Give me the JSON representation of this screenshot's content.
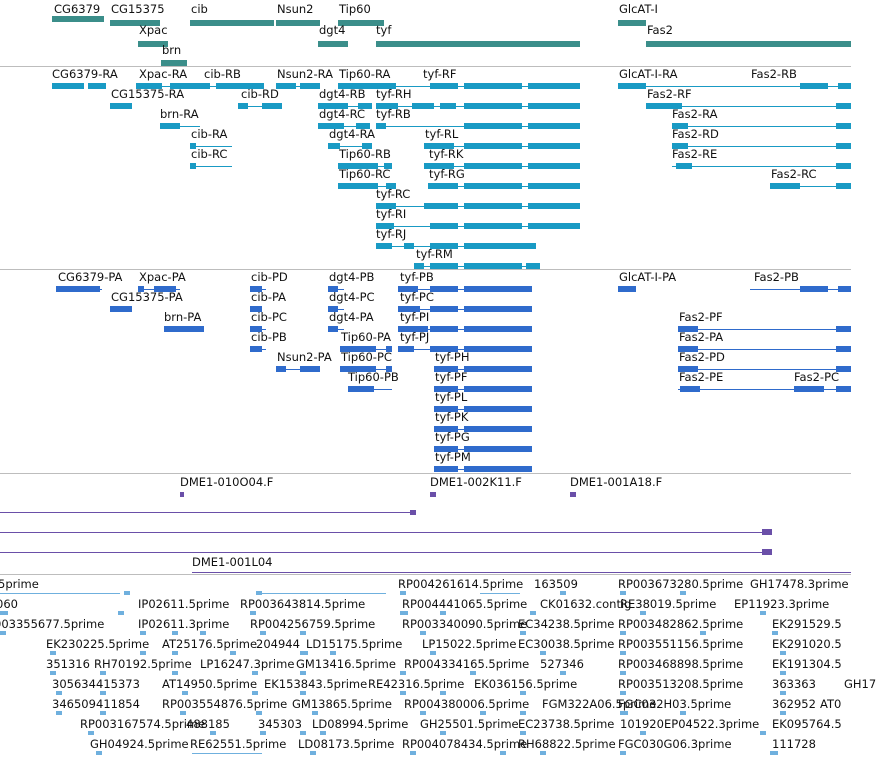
{
  "tracks": {
    "genes": [
      "CG6379",
      "CG15375",
      "cib",
      "Nsun2",
      "Tip60",
      "GlcAT-I",
      "Xpac",
      "dgt4",
      "tyf",
      "Fas2",
      "brn"
    ],
    "transcripts": [
      "CG6379-RA",
      "Xpac-RA",
      "cib-RB",
      "Nsun2-RA",
      "Tip60-RA",
      "tyf-RF",
      "GlcAT-I-RA",
      "Fas2-RB",
      "CG15375-RA",
      "cib-RD",
      "dgt4-RB",
      "tyf-RH",
      "Fas2-RF",
      "brn-RA",
      "dgt4-RC",
      "tyf-RB",
      "Fas2-RA",
      "cib-RA",
      "dgt4-RA",
      "tyf-RL",
      "Fas2-RD",
      "cib-RC",
      "Tip60-RB",
      "tyf-RK",
      "Fas2-RE",
      "Tip60-RC",
      "tyf-RG",
      "Fas2-RC",
      "tyf-RC",
      "tyf-RI",
      "tyf-RJ",
      "tyf-RM"
    ],
    "proteins": [
      "CG6379-PA",
      "Xpac-PA",
      "cib-PD",
      "dgt4-PB",
      "tyf-PB",
      "GlcAT-I-PA",
      "Fas2-PB",
      "CG15375-PA",
      "cib-PA",
      "dgt4-PC",
      "tyf-PC",
      "brn-PA",
      "cib-PC",
      "dgt4-PA",
      "tyf-PI",
      "Fas2-PF",
      "cib-PB",
      "Tip60-PA",
      "tyf-PJ",
      "Fas2-PA",
      "Nsun2-PA",
      "Tip60-PC",
      "tyf-PH",
      "Fas2-PD",
      "Tip60-PB",
      "tyf-PF",
      "Fas2-PE",
      "tyf-PL",
      "Fas2-PC",
      "tyf-PK",
      "tyf-PG",
      "tyf-PM"
    ],
    "clones": [
      "DME1-010O04.F",
      "DME1-002K11.F",
      "DME1-001A18.F",
      "DME1-001L04"
    ],
    "ests": [
      "5prime",
      "RP004261614.5prime",
      "163509",
      "RP003673280.5prime",
      "GH17478.3prime",
      "060",
      "IP02611.5prime",
      "RP003643814.5prime",
      "RP004441065.5prime",
      "CK01632.contig",
      "RE38019.5prime",
      "EP11923.3prime",
      "003355677.5prime",
      "IP02611.3prime",
      "RP004256759.5prime",
      "RP003340090.5prime",
      "EC34238.5prime",
      "RP003482862.5prime",
      "EK291529.5",
      "EK230225.5prime",
      "AT25176.5prime",
      "204944",
      "LD15175.5prime",
      "LP15022.5prime",
      "EC30038.5prime",
      "RP003551156.5prime",
      "EK291020.5",
      "351316",
      "RH70192.5prime",
      "LP16247.3prime",
      "GM13416.5prime",
      "RP004334165.5prime",
      "527346",
      "RP003468898.5prime",
      "EK191304.5",
      "305634",
      "415373",
      "AT14950.5prime",
      "EK153843.5prime",
      "RE42316.5prime",
      "EK036156.5prime",
      "RP003513208.5prime",
      "363363",
      "GH17",
      "346509",
      "411854",
      "RP003554876.5prime",
      "GM13865.5prime",
      "RP004380006.5prime",
      "FGM322A06.5prime",
      "FGC032H03.5prime",
      "362952",
      "AT0",
      "RP003167574.5prime",
      "488185",
      "345303",
      "LD08994.5prime",
      "GH25501.5prime",
      "EC23738.5prime",
      "101920",
      "EP04522.3prime",
      "EK095764.5",
      "GH04924.5prime",
      "RE62551.5prime",
      "LD08173.5prime",
      "RP004078434.5prime",
      "RH68822.5prime",
      "FGC030G06.3prime",
      "111728"
    ]
  }
}
